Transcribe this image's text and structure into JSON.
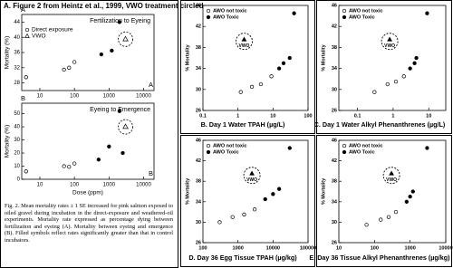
{
  "title": "A. Figure 2 from Heintz et al., 1999, VWO treatment circled",
  "caption": "Fig. 2. Mean mortality rates ± 1 SE increased for pink salmon exposed to oiled gravel during incubation in the direct-exposure and weathered-oil experiments. Mortality rate expressed as percentage dying between fertilization and eyeing (A). Mortality between eyeing and emergence (B). Filled symbols reflect rates significantly greater than that in control incubators.",
  "chart_data": [
    {
      "type": "scatter",
      "subtitle": "Fertilization to Eyeing",
      "panel_label": "A",
      "ylabel": "Mortality (%)",
      "log_x": true,
      "xlim": [
        3,
        20000
      ],
      "xticks": [
        10,
        100,
        1000,
        10000
      ],
      "ylim": [
        26,
        46
      ],
      "yticks": [
        28,
        32,
        36,
        40,
        44
      ],
      "legend": "upper left",
      "series": [
        {
          "name": "Direct exposure",
          "marker": "circle",
          "color": "#000000",
          "x": [
            4,
            50,
            70,
            100,
            600,
            1200,
            2000
          ],
          "values": [
            29.5,
            31.5,
            32,
            33.5,
            35.5,
            36.5,
            44
          ],
          "filled": [
            false,
            false,
            false,
            false,
            true,
            true,
            true
          ]
        },
        {
          "name": "VWO",
          "marker": "triangle",
          "color": "#000000",
          "circled": true,
          "x": [
            3000
          ],
          "values": [
            39.5
          ],
          "filled": false
        }
      ]
    },
    {
      "type": "scatter",
      "subtitle": "Eyeing to Emergence",
      "panel_label": "B",
      "ylabel": "Mortality (%)",
      "xlabel": "Dose (ppm)",
      "log_x": true,
      "xlim": [
        3,
        20000
      ],
      "xticks": [
        10,
        100,
        1000,
        10000
      ],
      "ylim": [
        0,
        58
      ],
      "yticks": [
        0,
        10,
        20,
        30,
        40,
        50
      ],
      "series": [
        {
          "name": "Direct exposure",
          "marker": "circle",
          "color": "#000000",
          "x": [
            4,
            50,
            70,
            100,
            500,
            1000,
            2000,
            2500
          ],
          "values": [
            6,
            10,
            9.5,
            12,
            15,
            25,
            52,
            20
          ],
          "filled": [
            false,
            false,
            false,
            false,
            true,
            true,
            true,
            true
          ]
        },
        {
          "name": "VWO",
          "marker": "triangle",
          "color": "#000000",
          "circled": true,
          "x": [
            3000
          ],
          "values": [
            40
          ],
          "filled": false
        }
      ]
    },
    {
      "type": "scatter",
      "title": "B.  Day 1 Water TPAH (µg/L)",
      "ylabel": "% Mortality",
      "log_x": true,
      "xlim": [
        0.1,
        100
      ],
      "xticks": [
        0.1,
        1,
        10,
        100
      ],
      "ylim": [
        26,
        46
      ],
      "yticks": [
        26,
        30,
        34,
        38,
        42,
        46
      ],
      "legend": "upper left",
      "series": [
        {
          "name": "AWO not toxic",
          "marker": "circle",
          "color": "#000000",
          "filled": false,
          "x": [
            1.2,
            2.5,
            4.5,
            9
          ],
          "values": [
            29.5,
            30.5,
            31,
            32.5
          ]
        },
        {
          "name": "AWO Toxic",
          "marker": "circle",
          "color": "#000000",
          "filled": true,
          "x": [
            15,
            20,
            30,
            40
          ],
          "values": [
            34,
            35,
            36,
            44.5
          ]
        }
      ],
      "annotation": {
        "text": "VWO",
        "x": 1.5,
        "y": 39.5
      }
    },
    {
      "type": "scatter",
      "title": "C.  Day 1 Water Alkyl Phenanthrenes (µg/L)",
      "ylabel": "% Mortality",
      "log_x": true,
      "xlim": [
        0.03,
        30
      ],
      "xticks": [
        0.1,
        1,
        10
      ],
      "ylim": [
        26,
        46
      ],
      "yticks": [
        26,
        30,
        34,
        38,
        42,
        46
      ],
      "legend": "upper left",
      "series": [
        {
          "name": "AWO not toxic",
          "marker": "circle",
          "color": "#000000",
          "filled": false,
          "x": [
            0.3,
            0.7,
            1.2,
            2
          ],
          "values": [
            29.5,
            31,
            31.5,
            32.5
          ]
        },
        {
          "name": "AWO Toxic",
          "marker": "circle",
          "color": "#000000",
          "filled": true,
          "x": [
            3,
            4,
            4.5,
            9
          ],
          "values": [
            34,
            35,
            36,
            44.5
          ]
        }
      ],
      "annotation": {
        "text": "VWO",
        "x": 0.8,
        "y": 39.5
      }
    },
    {
      "type": "scatter",
      "title": "D.  Day 36 Egg Tissue TPAH (µg/kg)",
      "ylabel": "% Mortality",
      "log_x": true,
      "xlim": [
        100,
        100000
      ],
      "xticks": [
        100,
        1000,
        10000,
        100000
      ],
      "ylim": [
        26,
        46
      ],
      "yticks": [
        26,
        30,
        34,
        38,
        42,
        46
      ],
      "legend": "upper left",
      "series": [
        {
          "name": "AWO not toxic",
          "marker": "circle",
          "color": "#000000",
          "filled": false,
          "x": [
            300,
            700,
            1500,
            3000
          ],
          "values": [
            30,
            31,
            31.5,
            32.5
          ]
        },
        {
          "name": "AWO Toxic",
          "marker": "circle",
          "color": "#000000",
          "filled": true,
          "x": [
            6000,
            10000,
            15000,
            30000
          ],
          "values": [
            34.5,
            35.5,
            36.5,
            44.5
          ]
        }
      ],
      "annotation": {
        "text": "VWO",
        "x": 2500,
        "y": 39.5
      }
    },
    {
      "type": "scatter",
      "title": "E.  Day 36 Tissue Alkyl Phenanthrenes (µg/kg)",
      "ylabel": "% Mortality",
      "log_x": true,
      "xlim": [
        10,
        10000
      ],
      "xticks": [
        10,
        100,
        1000,
        10000
      ],
      "ylim": [
        26,
        46
      ],
      "yticks": [
        26,
        30,
        34,
        38,
        42,
        46
      ],
      "legend": "upper left",
      "series": [
        {
          "name": "AWO not toxic",
          "marker": "circle",
          "color": "#000000",
          "filled": false,
          "x": [
            60,
            150,
            250,
            400
          ],
          "values": [
            29.5,
            30.5,
            31,
            32
          ]
        },
        {
          "name": "AWO Toxic",
          "marker": "circle",
          "color": "#000000",
          "filled": true,
          "x": [
            800,
            1000,
            1200,
            3000
          ],
          "values": [
            34,
            35,
            36,
            44.5
          ]
        }
      ],
      "annotation": {
        "text": "VWO",
        "x": 300,
        "y": 39.5
      }
    }
  ]
}
